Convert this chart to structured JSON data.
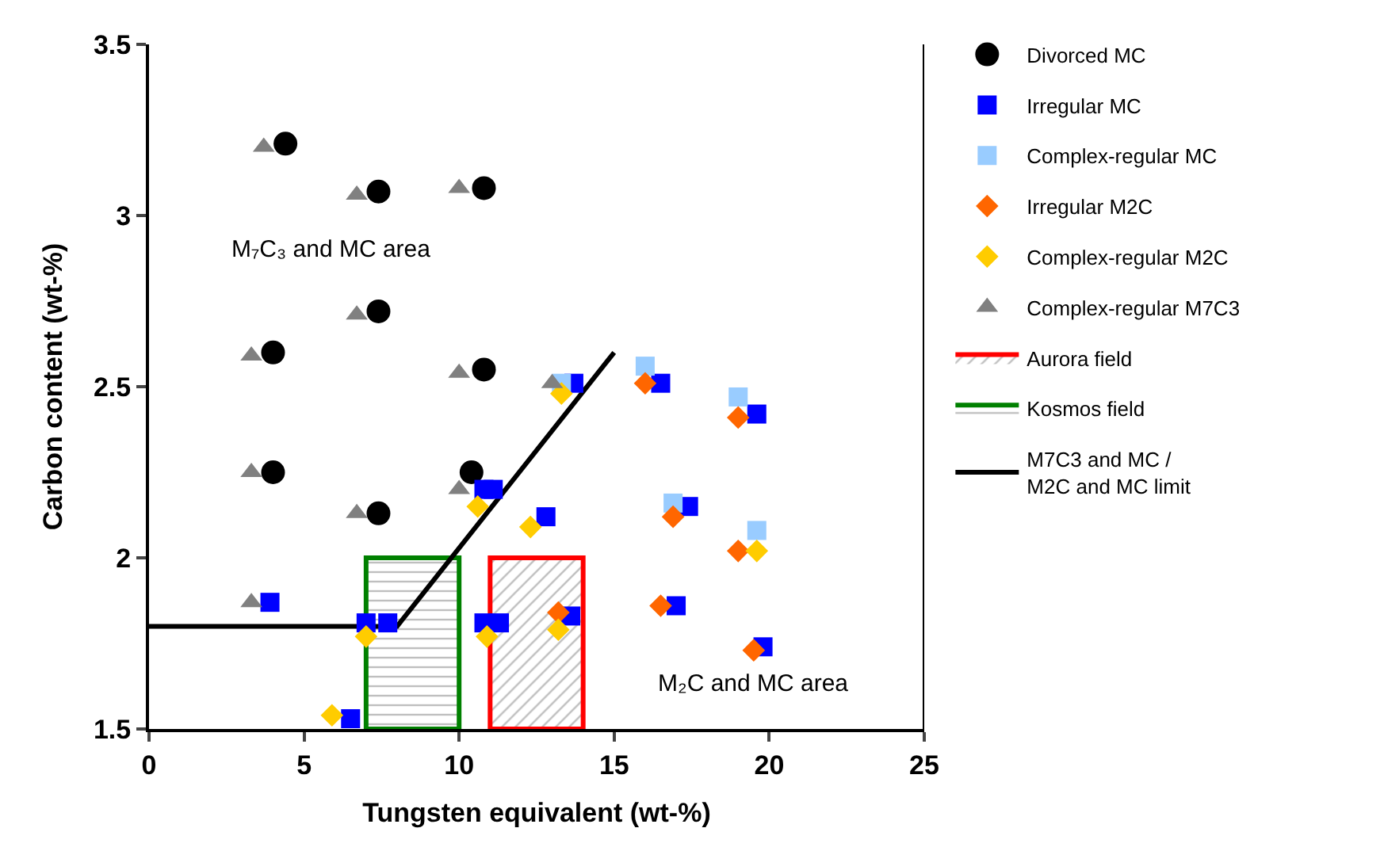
{
  "chart_data": {
    "type": "scatter",
    "xlabel": "Tungsten equivalent (wt-%)",
    "ylabel": "Carbon content (wt-%)",
    "xlim": [
      0,
      25
    ],
    "xticks": [
      0,
      5,
      10,
      15,
      20,
      25
    ],
    "ylim": [
      1.5,
      3.5
    ],
    "yticks": [
      1.5,
      2,
      2.5,
      3,
      3.5
    ],
    "legend": "right",
    "annotations": [
      "M₇C₃ and MC area",
      "M₂C and MC area"
    ],
    "series": [
      {
        "name": "Divorced MC",
        "type": "scatter",
        "marker": "circle",
        "color": "#000000",
        "x": [
          4.4,
          7.4,
          7.4,
          4.0,
          10.8,
          10.8,
          4.0,
          7.4,
          10.4
        ],
        "values": [
          3.21,
          3.07,
          2.72,
          2.6,
          3.08,
          2.55,
          2.25,
          2.13,
          2.25
        ]
      },
      {
        "name": "Irregular MC",
        "type": "scatter",
        "marker": "square",
        "color": "#0000ff",
        "x": [
          3.9,
          6.5,
          7.0,
          7.7,
          10.8,
          11.1,
          12.8,
          13.7,
          10.8,
          11.3,
          13.6,
          16.5,
          19.6,
          17.4,
          17.0,
          19.8
        ],
        "values": [
          1.87,
          1.53,
          1.81,
          1.81,
          2.2,
          2.2,
          2.12,
          2.51,
          1.81,
          1.81,
          1.83,
          2.51,
          2.42,
          2.15,
          1.86,
          1.74
        ]
      },
      {
        "name": "Complex-regular MC",
        "type": "scatter",
        "marker": "square",
        "color": "#99ccff",
        "x": [
          16.0,
          19.0,
          16.9,
          19.6,
          13.3
        ],
        "values": [
          2.56,
          2.47,
          2.16,
          2.08,
          2.51
        ]
      },
      {
        "name": "Irregular M2C",
        "type": "scatter",
        "marker": "diamond",
        "color": "#ff6600",
        "x": [
          16.0,
          19.0,
          16.9,
          19.0,
          16.5,
          19.5,
          13.2
        ],
        "values": [
          2.51,
          2.41,
          2.12,
          2.02,
          1.86,
          1.73,
          1.84
        ]
      },
      {
        "name": "Complex-regular M2C",
        "type": "scatter",
        "marker": "diamond",
        "color": "#ffcc00",
        "x": [
          13.3,
          10.6,
          12.3,
          19.6,
          7.0,
          10.9,
          13.2,
          5.9
        ],
        "values": [
          2.48,
          2.15,
          2.09,
          2.02,
          1.77,
          1.77,
          1.79,
          1.54
        ]
      },
      {
        "name": "Complex-regular M7C3",
        "type": "scatter",
        "marker": "triangle",
        "color": "#808080",
        "x": [
          3.7,
          6.7,
          6.7,
          3.3,
          10.0,
          10.0,
          3.3,
          6.7,
          10.0,
          3.3,
          13.0
        ],
        "values": [
          3.2,
          3.06,
          2.71,
          2.59,
          3.08,
          2.54,
          2.25,
          2.13,
          2.2,
          1.87,
          2.51
        ]
      },
      {
        "name": "Aurora field",
        "type": "area",
        "color": "#ff0000",
        "x": [
          11,
          11,
          14,
          14,
          11
        ],
        "values": [
          1.5,
          2.0,
          2.0,
          1.5,
          1.5
        ]
      },
      {
        "name": "Kosmos field",
        "type": "area",
        "color": "#008000",
        "x": [
          7,
          7,
          10,
          10,
          7
        ],
        "values": [
          1.5,
          2.0,
          2.0,
          1.5,
          1.5
        ]
      },
      {
        "name": "M7C3 and MC /\nM2C and MC limit",
        "type": "line",
        "color": "#000000",
        "x": [
          0,
          8.0,
          15.0
        ],
        "values": [
          1.8,
          1.8,
          2.6
        ]
      }
    ]
  }
}
